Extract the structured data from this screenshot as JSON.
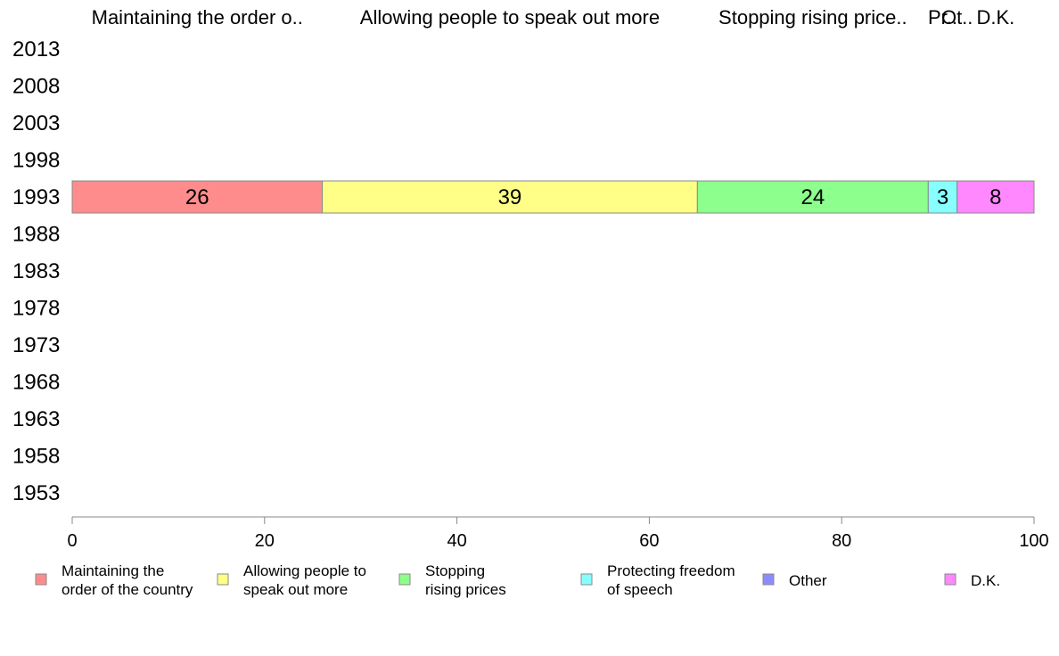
{
  "chart_data": {
    "type": "bar",
    "orientation": "horizontal",
    "stacked": true,
    "categories": [
      "2013",
      "2008",
      "2003",
      "1998",
      "1993",
      "1988",
      "1983",
      "1978",
      "1973",
      "1968",
      "1963",
      "1958",
      "1953"
    ],
    "series": [
      {
        "name": "Maintaining the order of the country",
        "legend_lines": [
          "Maintaining the",
          "order of the country"
        ],
        "header": "Maintaining the order o..",
        "color": "#ff8c8c",
        "values": [
          null,
          null,
          null,
          null,
          26,
          null,
          null,
          null,
          null,
          null,
          null,
          null,
          null
        ]
      },
      {
        "name": "Allowing people to speak out more",
        "legend_lines": [
          "Allowing people to",
          "speak out more"
        ],
        "header": "Allowing people to speak out more",
        "color": "#ffff88",
        "values": [
          null,
          null,
          null,
          null,
          39,
          null,
          null,
          null,
          null,
          null,
          null,
          null,
          null
        ]
      },
      {
        "name": "Stopping rising prices",
        "legend_lines": [
          "Stopping",
          "rising prices"
        ],
        "header": "Stopping rising price..",
        "color": "#8cff8c",
        "values": [
          null,
          null,
          null,
          null,
          24,
          null,
          null,
          null,
          null,
          null,
          null,
          null,
          null
        ]
      },
      {
        "name": "Protecting freedom of speech",
        "legend_lines": [
          "Protecting freedom",
          "of speech"
        ],
        "header": "Pr..",
        "color": "#88ffff",
        "values": [
          null,
          null,
          null,
          null,
          3,
          null,
          null,
          null,
          null,
          null,
          null,
          null,
          null
        ]
      },
      {
        "name": "Other",
        "legend_lines": [
          "Other"
        ],
        "header": "Ot..",
        "color": "#8c8cff",
        "values": [
          null,
          null,
          null,
          null,
          0,
          null,
          null,
          null,
          null,
          null,
          null,
          null,
          null
        ]
      },
      {
        "name": "D.K.",
        "legend_lines": [
          "D.K."
        ],
        "header": "D.K.",
        "color": "#ff88ff",
        "values": [
          null,
          null,
          null,
          null,
          8,
          null,
          null,
          null,
          null,
          null,
          null,
          null,
          null
        ]
      }
    ],
    "xlim": [
      0,
      100
    ],
    "xticks": [
      0,
      20,
      40,
      60,
      80,
      100
    ],
    "grid": false,
    "legend_position": "bottom"
  }
}
